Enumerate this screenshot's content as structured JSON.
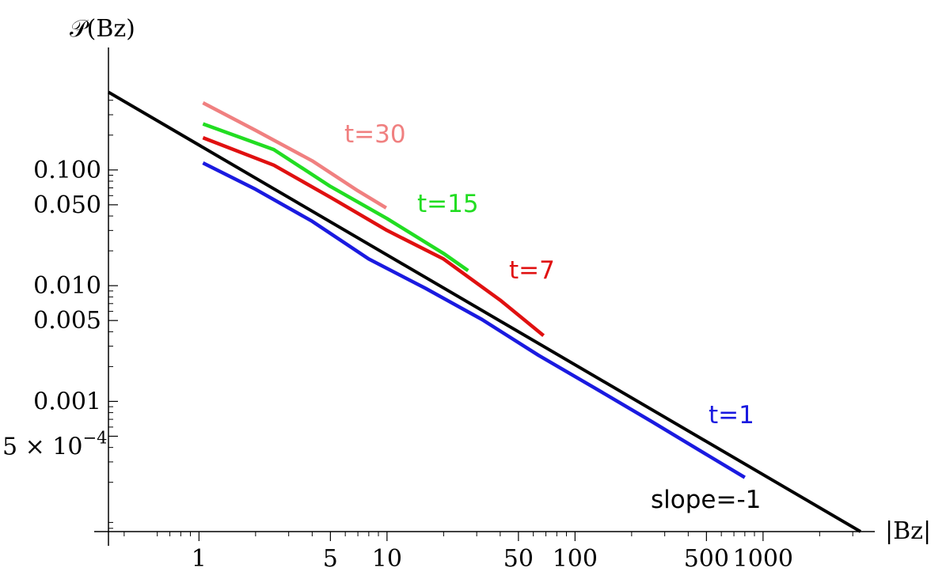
{
  "chart_data": {
    "type": "line",
    "scale": {
      "x": "log",
      "y": "log"
    },
    "xlabel": "|Bz|",
    "ylabel": "𝒫(Bz)",
    "xlim": [
      0.33,
      3300
    ],
    "ylim": [
      7.5e-05,
      0.6
    ],
    "x_ticks": [
      {
        "value": 1,
        "label": "1"
      },
      {
        "value": 5,
        "label": "5"
      },
      {
        "value": 10,
        "label": "10"
      },
      {
        "value": 50,
        "label": "50"
      },
      {
        "value": 100,
        "label": "100"
      },
      {
        "value": 500,
        "label": "500"
      },
      {
        "value": 1000,
        "label": "1000"
      }
    ],
    "y_ticks": [
      {
        "value": 0.1,
        "label": "0.100"
      },
      {
        "value": 0.05,
        "label": "0.050"
      },
      {
        "value": 0.01,
        "label": "0.010"
      },
      {
        "value": 0.005,
        "label": "0.005"
      },
      {
        "value": 0.001,
        "label": "0.001"
      },
      {
        "value": 0.0005,
        "label": "5 × 10",
        "exponent": "−4"
      }
    ],
    "series": [
      {
        "name": "t=30",
        "color": "#f08080",
        "x": [
          1.05,
          2,
          4,
          7,
          9.9
        ],
        "y": [
          0.38,
          0.22,
          0.12,
          0.066,
          0.047
        ]
      },
      {
        "name": "t=15",
        "color": "#22dd22",
        "x": [
          1.05,
          2.5,
          5,
          10,
          20,
          27
        ],
        "y": [
          0.25,
          0.15,
          0.072,
          0.038,
          0.019,
          0.0135
        ]
      },
      {
        "name": "t=7",
        "color": "#e01010",
        "x": [
          1.05,
          2.5,
          5,
          10,
          20,
          40,
          68
        ],
        "y": [
          0.19,
          0.11,
          0.058,
          0.03,
          0.017,
          0.0075,
          0.0037
        ]
      },
      {
        "name": "t=1",
        "color": "#1a1ae0",
        "x": [
          1.05,
          2,
          4,
          8,
          16,
          32,
          64,
          128,
          256,
          512,
          800
        ],
        "y": [
          0.115,
          0.068,
          0.036,
          0.017,
          0.0095,
          0.0051,
          0.0025,
          0.0013,
          0.00067,
          0.00034,
          0.00022
        ]
      },
      {
        "name": "slope=-1",
        "color": "#000000",
        "x": [
          0.33,
          3300
        ],
        "y": [
          0.47,
          7.5e-05
        ]
      }
    ]
  }
}
